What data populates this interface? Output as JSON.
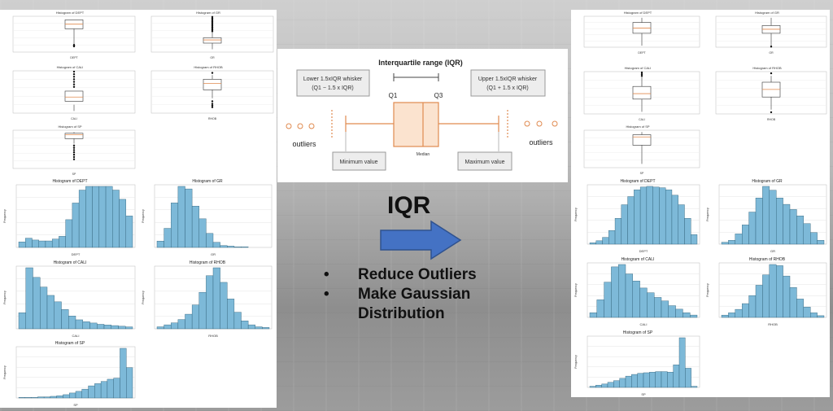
{
  "colors": {
    "bar": "#7db9d8",
    "barEdge": "#2c5d75",
    "arrow": "#4472c4",
    "box": "#e08a4f"
  },
  "iqr": {
    "title": "Interquartile range (IQR)",
    "lower_l1": "Lower 1.5xIQR whisker",
    "lower_l2": "(Q1 − 1.5 x IQR)",
    "upper_l1": "Upper 1.5xIQR whisker",
    "upper_l2": "(Q1 + 1.5 x IQR)",
    "q1": "Q1",
    "q3": "Q3",
    "median": "Median",
    "outliers_left": "outliers",
    "outliers_right": "outliers",
    "min": "Minimum value",
    "max": "Maximum value"
  },
  "center": {
    "big": "IQR",
    "bullet1": "Reduce Outliers",
    "bullet2": "Make Gaussian",
    "bullet3": "Distribution",
    "dot": "•"
  },
  "left": {
    "box_titles": [
      "Histogram of DEPT",
      "Histogram of GR",
      "Histogram of CALI",
      "Histogram of RHOB",
      "Histogram of SP"
    ],
    "box_xlabels": [
      "DEPT",
      "GR",
      "CALI",
      "RHOB",
      "SP"
    ],
    "hist_titles": [
      "Histogram of DEPT",
      "Histogram of GR",
      "Histogram of CALI",
      "Histogram of RHOB",
      "Histogram of SP"
    ],
    "hist_xlabels": [
      "DEPT",
      "GR",
      "CALI",
      "RHOB",
      "SP"
    ],
    "hist_ylabel": "Frequency",
    "hist_values": [
      [
        6,
        10,
        8,
        7,
        7,
        9,
        12,
        30,
        48,
        62,
        66,
        66,
        66,
        66,
        62,
        52,
        34
      ],
      [
        10,
        30,
        70,
        96,
        92,
        65,
        45,
        22,
        8,
        3,
        2,
        1,
        1,
        0,
        0,
        0
      ],
      [
        25,
        95,
        80,
        65,
        52,
        42,
        30,
        20,
        14,
        11,
        9,
        7,
        6,
        5,
        4,
        3
      ],
      [
        3,
        6,
        9,
        14,
        22,
        36,
        55,
        80,
        92,
        70,
        45,
        25,
        12,
        6,
        3,
        2
      ],
      [
        1,
        1,
        1,
        2,
        2,
        3,
        4,
        6,
        9,
        12,
        16,
        22,
        26,
        30,
        34,
        36,
        90,
        55
      ]
    ]
  },
  "right": {
    "box_titles": [
      "Histogram of DEPT",
      "Histogram of GR",
      "Histogram of CALI",
      "Histogram of RHOB",
      "Histogram of SP"
    ],
    "box_xlabels": [
      "DEPT",
      "GR",
      "CALI",
      "RHOB",
      "SP"
    ],
    "hist_titles": [
      "Histogram of DEPT",
      "Histogram of GR",
      "Histogram of CALI",
      "Histogram of RHOB",
      "Histogram of SP"
    ],
    "hist_xlabels": [
      "DEPT",
      "GR",
      "CALI",
      "RHOB",
      "SP"
    ],
    "hist_ylabel": "Frequency",
    "hist_values": [
      [
        2,
        5,
        10,
        20,
        38,
        58,
        70,
        80,
        84,
        85,
        84,
        83,
        80,
        72,
        58,
        38,
        14
      ],
      [
        3,
        6,
        16,
        30,
        50,
        72,
        90,
        84,
        72,
        62,
        54,
        44,
        32,
        18,
        6
      ],
      [
        8,
        30,
        60,
        86,
        90,
        74,
        62,
        50,
        42,
        34,
        28,
        20,
        14,
        8,
        4
      ],
      [
        4,
        8,
        14,
        24,
        38,
        56,
        74,
        92,
        90,
        72,
        52,
        32,
        18,
        8,
        3
      ],
      [
        2,
        4,
        6,
        9,
        12,
        16,
        20,
        23,
        25,
        26,
        27,
        28,
        28,
        27,
        40,
        88,
        34,
        2
      ]
    ]
  }
}
